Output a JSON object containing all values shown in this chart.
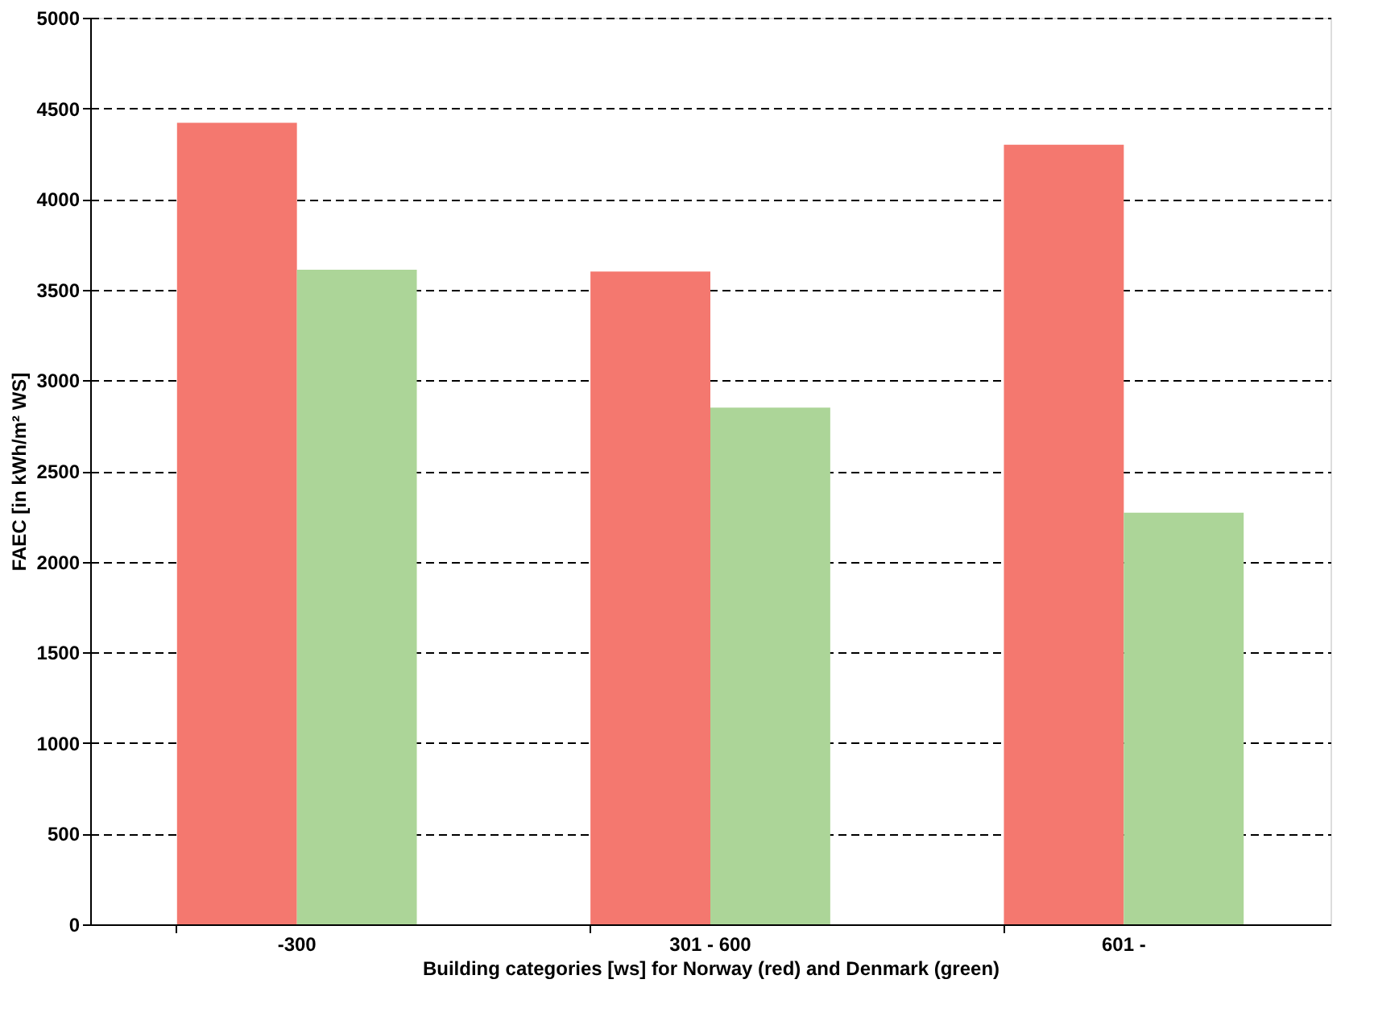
{
  "chart_data": {
    "type": "bar",
    "xlabel": "Building  categories  [ws]  for Norway (red) and Denmark (green)",
    "ylabel": "FAEC [in kWh/m² WS]",
    "categories": [
      "-300",
      "301 - 600",
      "601 -"
    ],
    "series": [
      {
        "color": "#f4786f",
        "values": [
          4420,
          3600,
          4300
        ]
      },
      {
        "color": "#acd598",
        "values": [
          3610,
          2850,
          2270
        ]
      }
    ],
    "ylim": [
      0,
      5000
    ],
    "yticks": [
      0,
      500,
      1000,
      1500,
      2000,
      2500,
      3000,
      3500,
      4000,
      4500,
      5000
    ],
    "grid": "y",
    "legend": false
  }
}
